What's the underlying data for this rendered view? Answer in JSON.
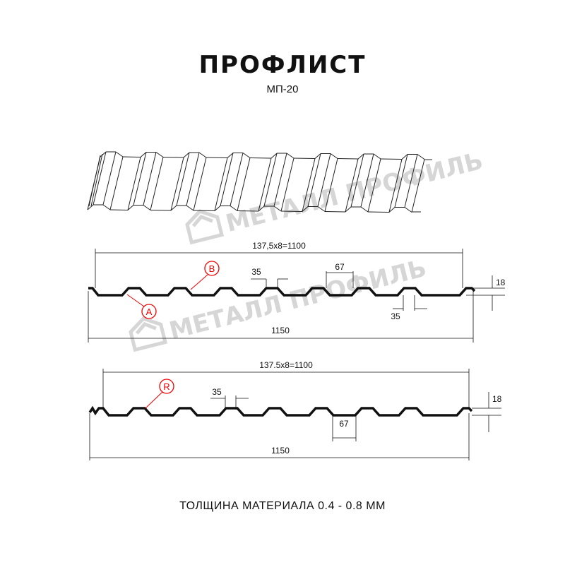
{
  "title": "ПРОФЛИСТ",
  "subtitle": "МП-20",
  "footer": "ТОЛЩИНА МАТЕРИАЛА 0.4 - 0.8 ММ",
  "watermark": "МЕТАЛЛ ПРОФИЛЬ",
  "colors": {
    "line": "#111111",
    "callout": "#e00000",
    "watermark": "#d6d6d6"
  },
  "profile_a": {
    "pitch_dim": "137,5x8=1100",
    "rib_top_dim": "35",
    "rib_base_dim": "67",
    "valley_dim": "35",
    "height_dim": "18",
    "width_dim": "1150",
    "callouts": [
      "A",
      "B"
    ]
  },
  "profile_b": {
    "pitch_dim": "137.5x8=1100",
    "rib_top_dim": "35",
    "valley_dim": "67",
    "height_dim": "18",
    "width_dim": "1150",
    "callouts": [
      "R"
    ]
  }
}
